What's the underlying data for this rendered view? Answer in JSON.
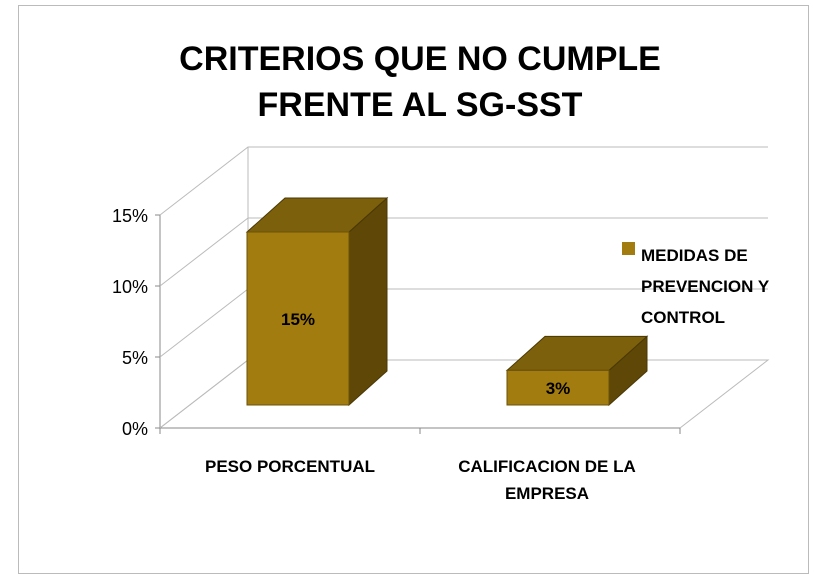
{
  "chart_data": {
    "type": "bar3d",
    "title": "CRITERIOS QUE NO CUMPLE FRENTE AL SG-SST",
    "categories": [
      "PESO PORCENTUAL",
      "CALIFICACION DE LA EMPRESA"
    ],
    "series": [
      {
        "name": "MEDIDAS DE PREVENCION Y CONTROL",
        "color": "#a27c0f",
        "values": [
          15,
          3
        ],
        "value_labels": [
          "15%",
          "3%"
        ]
      }
    ],
    "ylim": [
      0,
      15
    ],
    "yticks": [
      {
        "value": 0,
        "label": "0%"
      },
      {
        "value": 5,
        "label": "5%"
      },
      {
        "value": 10,
        "label": "10%"
      },
      {
        "value": 15,
        "label": "15%"
      }
    ],
    "grid": true,
    "legend": "right"
  }
}
